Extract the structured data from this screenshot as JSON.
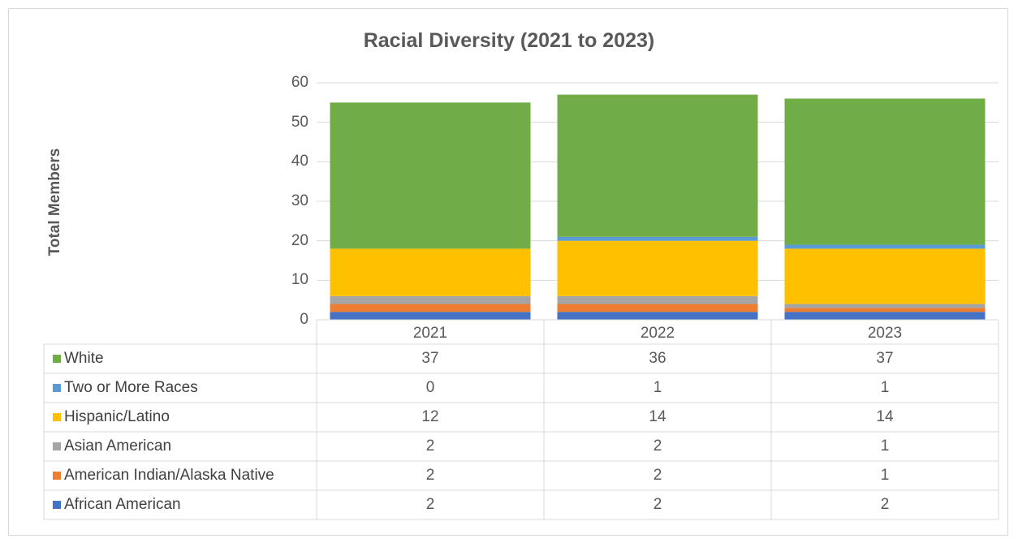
{
  "chart_data": {
    "type": "bar",
    "stacked": true,
    "title": "Racial Diversity (2021 to 2023)",
    "xlabel": "",
    "ylabel": "Total Members",
    "ylim": [
      0,
      60
    ],
    "yticks": [
      0,
      10,
      20,
      30,
      40,
      50,
      60
    ],
    "grid": true,
    "legend": "data-table-below",
    "categories": [
      "2021",
      "2022",
      "2023"
    ],
    "series": [
      {
        "name": "African American",
        "color": "#4472C4",
        "values": [
          2,
          2,
          2
        ]
      },
      {
        "name": "American Indian/Alaska Native",
        "color": "#ED7D31",
        "values": [
          2,
          2,
          1
        ]
      },
      {
        "name": "Asian American",
        "color": "#A5A5A5",
        "values": [
          2,
          2,
          1
        ]
      },
      {
        "name": "Hispanic/Latino",
        "color": "#FFC000",
        "values": [
          12,
          14,
          14
        ]
      },
      {
        "name": "Two or More Races",
        "color": "#5B9BD5",
        "values": [
          0,
          1,
          1
        ]
      },
      {
        "name": "White",
        "color": "#70AD47",
        "values": [
          37,
          36,
          37
        ]
      }
    ]
  }
}
